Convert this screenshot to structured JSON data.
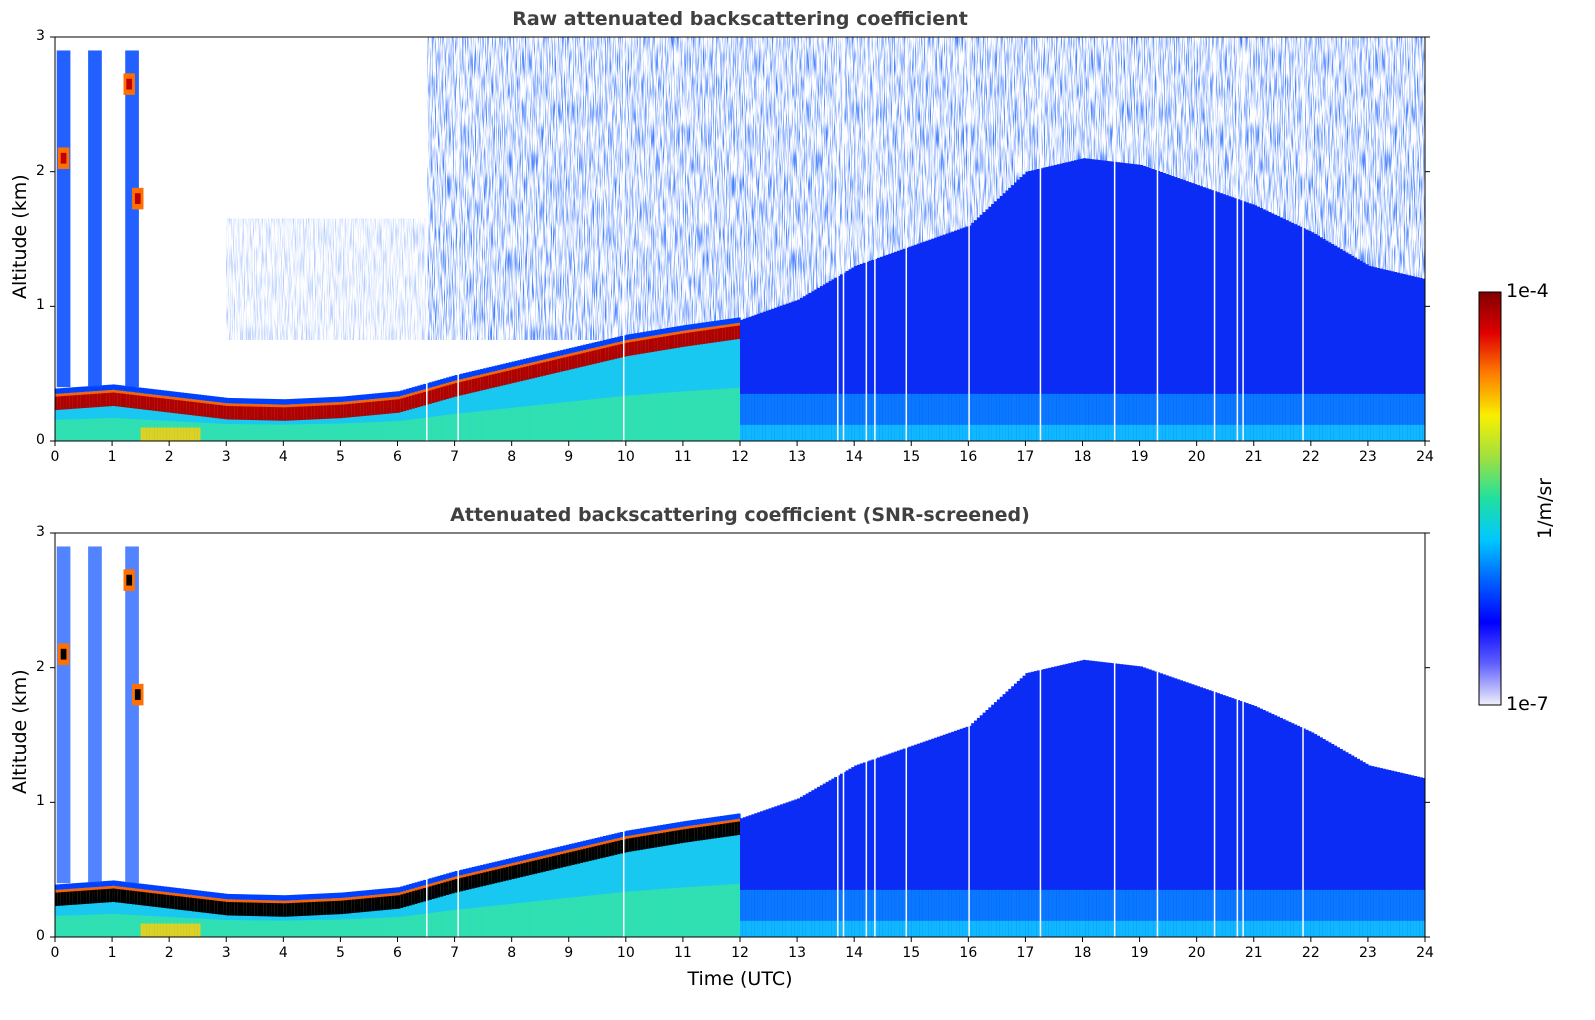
{
  "chart_data": [
    {
      "type": "heatmap",
      "title": "Raw attenuated backscattering coefficient",
      "xlabel": "",
      "ylabel": "Altitude (km)",
      "xlim": [
        0,
        24
      ],
      "ylim": [
        0,
        3
      ],
      "x_ticks": [
        "0",
        "1",
        "2",
        "3",
        "4",
        "5",
        "6",
        "7",
        "8",
        "9",
        "10",
        "11",
        "12",
        "13",
        "14",
        "15",
        "16",
        "17",
        "18",
        "19",
        "20",
        "21",
        "22",
        "23",
        "24"
      ],
      "y_ticks": [
        "0",
        "1",
        "2",
        "3"
      ],
      "boundary_layer_top_km": [
        {
          "x": 0,
          "y": 0.35
        },
        {
          "x": 1,
          "y": 0.38
        },
        {
          "x": 2,
          "y": 0.33
        },
        {
          "x": 3,
          "y": 0.28
        },
        {
          "x": 4,
          "y": 0.27
        },
        {
          "x": 5,
          "y": 0.29
        },
        {
          "x": 6,
          "y": 0.33
        },
        {
          "x": 7,
          "y": 0.45
        },
        {
          "x": 7.5,
          "y": 0.5
        },
        {
          "x": 8,
          "y": 0.55
        },
        {
          "x": 9,
          "y": 0.65
        },
        {
          "x": 10,
          "y": 0.75
        },
        {
          "x": 11,
          "y": 0.82
        },
        {
          "x": 12,
          "y": 0.88
        }
      ],
      "aerosol_top_km": [
        {
          "x": 12,
          "y": 0.9
        },
        {
          "x": 13,
          "y": 1.05
        },
        {
          "x": 14,
          "y": 1.3
        },
        {
          "x": 15,
          "y": 1.45
        },
        {
          "x": 16,
          "y": 1.6
        },
        {
          "x": 17,
          "y": 2.0
        },
        {
          "x": 18,
          "y": 2.1
        },
        {
          "x": 19,
          "y": 2.05
        },
        {
          "x": 20,
          "y": 1.9
        },
        {
          "x": 21,
          "y": 1.75
        },
        {
          "x": 22,
          "y": 1.55
        },
        {
          "x": 23,
          "y": 1.3
        },
        {
          "x": 24,
          "y": 1.2
        }
      ],
      "cloud_events": [
        {
          "x": 0.15,
          "y": 2.1,
          "intensity": "high"
        },
        {
          "x": 1.3,
          "y": 2.65,
          "intensity": "high"
        },
        {
          "x": 1.45,
          "y": 1.8,
          "intensity": "high"
        }
      ],
      "data_gaps_utc": [
        6.5,
        7.05,
        9.95,
        13.7,
        13.8,
        14.2,
        14.35,
        14.9,
        16.0,
        17.25,
        18.55,
        19.3,
        20.3,
        20.7,
        20.8,
        21.85
      ]
    },
    {
      "type": "heatmap",
      "title": "Attenuated backscattering coefficient (SNR-screened)",
      "xlabel": "Time (UTC)",
      "ylabel": "Altitude (km)",
      "xlim": [
        0,
        24
      ],
      "ylim": [
        0,
        3
      ],
      "x_ticks": [
        "0",
        "1",
        "2",
        "3",
        "4",
        "5",
        "6",
        "7",
        "8",
        "9",
        "10",
        "11",
        "12",
        "13",
        "14",
        "15",
        "16",
        "17",
        "18",
        "19",
        "20",
        "21",
        "22",
        "23",
        "24"
      ],
      "y_ticks": [
        "0",
        "1",
        "2",
        "3"
      ]
    }
  ],
  "colorbar": {
    "label": "1/m/sr",
    "max_label": "1e-4",
    "min_label": "1e-7",
    "colormap": [
      "#f0f0fa",
      "#6060ff",
      "#0000ff",
      "#0060ff",
      "#00c8ff",
      "#20e0a0",
      "#a0e040",
      "#f8f000",
      "#ff8000",
      "#e00000",
      "#800000"
    ]
  }
}
